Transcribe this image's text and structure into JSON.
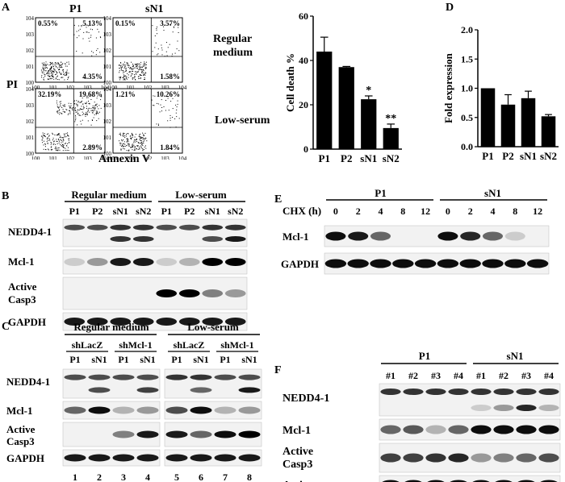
{
  "panels": {
    "A": {
      "letter": "A",
      "col_labels": [
        "P1",
        "sN1"
      ],
      "row_labels": [
        "Regular medium",
        "Low-serum"
      ],
      "y_axis": "PI",
      "x_axis": "Annexin V",
      "tick_exponents": [
        "0",
        "1",
        "2",
        "3",
        "4"
      ],
      "quadrants": [
        {
          "ul": "0.55%",
          "ur": "5.13%",
          "lr": "4.35%"
        },
        {
          "ul": "0.15%",
          "ur": "3.57%",
          "lr": "1.58%"
        },
        {
          "ul": "32.19%",
          "ur": "19.68%",
          "lr": "2.89%"
        },
        {
          "ul": "1.21%",
          "ur": "10.26%",
          "lr": "1.84%"
        }
      ]
    },
    "D": {
      "letter": "D"
    },
    "B": {
      "letter": "B",
      "groups": [
        "Regular medium",
        "Low-serum"
      ],
      "lanes": [
        "P1",
        "P2",
        "sN1",
        "sN2",
        "P1",
        "P2",
        "sN1",
        "sN2"
      ],
      "rows": [
        "NEDD4-1",
        "Mcl-1",
        "Active Casp3",
        "GAPDH"
      ]
    },
    "C": {
      "letter": "C",
      "groups": [
        "Regular medium",
        "Low-serum"
      ],
      "subgroups": [
        "shLacZ",
        "shMcl-1",
        "shLacZ",
        "shMcl-1"
      ],
      "lanes": [
        "P1",
        "sN1",
        "P1",
        "sN1",
        "P1",
        "sN1",
        "P1",
        "sN1"
      ],
      "rows": [
        "NEDD4-1",
        "Mcl-1",
        "Active Casp3",
        "GAPDH"
      ],
      "lane_numbers": [
        "1",
        "2",
        "3",
        "4",
        "5",
        "6",
        "7",
        "8"
      ]
    },
    "E": {
      "letter": "E",
      "groups": [
        "P1",
        "sN1"
      ],
      "condition": "CHX (h)",
      "lanes": [
        "0",
        "2",
        "4",
        "8",
        "12",
        "0",
        "2",
        "4",
        "8",
        "12"
      ],
      "rows": [
        "Mcl-1",
        "GAPDH"
      ]
    },
    "F": {
      "letter": "F",
      "groups": [
        "P1",
        "sN1"
      ],
      "lanes": [
        "#1",
        "#2",
        "#3",
        "#4",
        "#1",
        "#2",
        "#3",
        "#4"
      ],
      "rows": [
        "NEDD4-1",
        "Mcl-1",
        "Active Casp3",
        "Actin"
      ]
    }
  },
  "chart_data": [
    {
      "type": "bar",
      "categories": [
        "P1",
        "P2",
        "sN1",
        "sN2"
      ],
      "values": [
        44,
        37,
        22.5,
        9.5
      ],
      "errors": [
        6.5,
        0.3,
        1.5,
        1.8
      ],
      "annotations": [
        "",
        "",
        "*",
        "**"
      ],
      "ylabel": "Cell death %",
      "ylim": [
        0,
        60
      ],
      "yticks": [
        0,
        20,
        40,
        60
      ]
    },
    {
      "type": "bar",
      "categories": [
        "P1",
        "P2",
        "sN1",
        "sN2"
      ],
      "values": [
        1.0,
        0.72,
        0.83,
        0.52
      ],
      "errors": [
        0,
        0.17,
        0.12,
        0.03
      ],
      "annotations": [
        "",
        "",
        "",
        ""
      ],
      "ylabel": "Fold expression",
      "ylim": [
        0,
        2.0
      ],
      "yticks": [
        "0.0",
        "0.5",
        "1.0",
        "1.5",
        "2.0"
      ]
    }
  ]
}
